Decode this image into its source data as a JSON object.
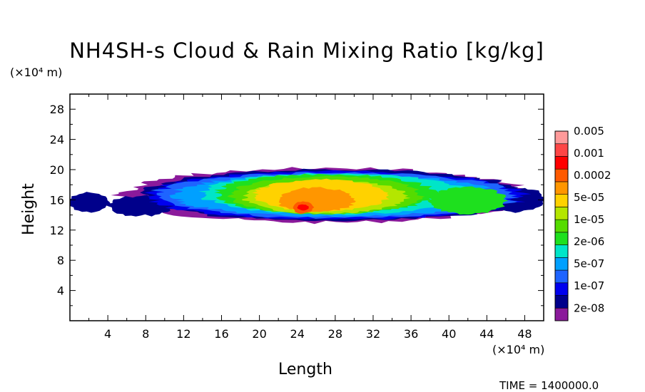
{
  "chart_data": {
    "type": "heatmap",
    "title": "NH4SH-s Cloud & Rain Mixing Ratio [kg/kg]",
    "xlabel": "Length",
    "ylabel": "Height",
    "x_unit": "(×10⁴ m)",
    "y_unit": "(×10⁴ m)",
    "xlim": [
      0,
      50
    ],
    "ylim": [
      0,
      30
    ],
    "x_ticks": [
      4,
      8,
      12,
      16,
      20,
      24,
      28,
      32,
      36,
      40,
      44,
      48
    ],
    "y_ticks": [
      4,
      8,
      12,
      16,
      20,
      24,
      28
    ],
    "x_tick_labels": [
      "4",
      "8",
      "12",
      "16",
      "20",
      "24",
      "28",
      "32",
      "36",
      "40",
      "44",
      "48"
    ],
    "y_tick_labels": [
      "4",
      "8",
      "12",
      "16",
      "20",
      "24",
      "28"
    ],
    "colorbar": {
      "levels": [
        "2e-08",
        "1e-07",
        "5e-07",
        "2e-06",
        "1e-05",
        "5e-05",
        "0.0002",
        "0.001",
        "0.005"
      ],
      "colors": [
        "#8b1a9b",
        "#00008b",
        "#0000ee",
        "#1e64ff",
        "#00a0ff",
        "#00e5c8",
        "#1ee01e",
        "#55dc00",
        "#b4e600",
        "#ffd200",
        "#ff9600",
        "#ff5a00",
        "#ff0000",
        "#ff4646",
        "#ff9a9a"
      ]
    },
    "field_description_levels": {
      "layer_bottom_height": 13.5,
      "layer_top_height": 20.5,
      "peak_value": "0.001",
      "peak_location": [
        24.5,
        15
      ]
    },
    "time_label": "TIME = 1400000.0"
  }
}
